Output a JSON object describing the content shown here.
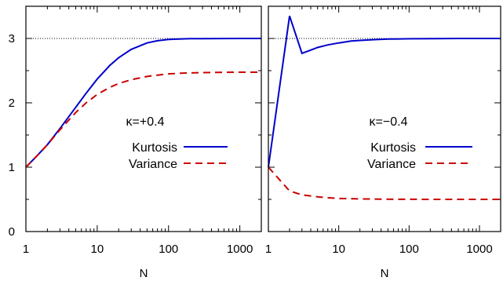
{
  "chart_data": [
    {
      "type": "line",
      "annotation": "κ=+0.4",
      "xlabel": "N",
      "ylabel": "",
      "xscale": "log",
      "xlim": [
        1,
        2000
      ],
      "ylim": [
        0,
        3.5
      ],
      "xticks": [
        "1",
        "10",
        "100",
        "1000"
      ],
      "yticks": [
        "0",
        "1",
        "2",
        "3"
      ],
      "reference_line": {
        "y": 3,
        "style": "dotted",
        "color": "#000000"
      },
      "legend": "center-right",
      "series": [
        {
          "name": "Kurtosis",
          "color": "#0000cc",
          "dash": "solid",
          "x": [
            1,
            1.5,
            2,
            3,
            5,
            7,
            10,
            15,
            20,
            30,
            50,
            70,
            100,
            150,
            200,
            300,
            500,
            1000,
            2000
          ],
          "y": [
            1.0,
            1.2,
            1.35,
            1.6,
            1.93,
            2.15,
            2.37,
            2.58,
            2.7,
            2.83,
            2.93,
            2.965,
            2.985,
            2.993,
            2.996,
            2.998,
            2.999,
            3.0,
            3.0
          ]
        },
        {
          "name": "Variance",
          "color": "#cc0000",
          "dash": "dashed",
          "x": [
            1,
            1.5,
            2,
            3,
            5,
            7,
            10,
            15,
            20,
            30,
            50,
            70,
            100,
            150,
            200,
            300,
            500,
            1000,
            2000
          ],
          "y": [
            1.0,
            1.2,
            1.35,
            1.58,
            1.85,
            2.0,
            2.13,
            2.24,
            2.3,
            2.36,
            2.41,
            2.43,
            2.45,
            2.46,
            2.465,
            2.47,
            2.473,
            2.475,
            2.476
          ]
        }
      ]
    },
    {
      "type": "line",
      "annotation": "κ=−0.4",
      "xlabel": "N",
      "ylabel": "",
      "xscale": "log",
      "xlim": [
        1,
        2000
      ],
      "ylim": [
        0,
        3.5
      ],
      "xticks": [
        "1",
        "10",
        "100",
        "1000"
      ],
      "yticks": [],
      "reference_line": {
        "y": 3,
        "style": "dotted",
        "color": "#000000"
      },
      "legend": "center-right",
      "series": [
        {
          "name": "Kurtosis",
          "color": "#0000cc",
          "dash": "solid",
          "x": [
            1,
            2,
            3,
            4,
            5,
            7,
            10,
            15,
            20,
            30,
            50,
            100,
            200,
            500,
            1000,
            2000
          ],
          "y": [
            1.0,
            3.35,
            2.77,
            2.82,
            2.86,
            2.9,
            2.93,
            2.96,
            2.97,
            2.98,
            2.99,
            2.995,
            2.998,
            3.0,
            3.0,
            3.0
          ]
        },
        {
          "name": "Variance",
          "color": "#cc0000",
          "dash": "dashed",
          "x": [
            1,
            2,
            3,
            5,
            7,
            10,
            20,
            50,
            100,
            200,
            500,
            1000,
            2000
          ],
          "y": [
            1.0,
            0.63,
            0.57,
            0.54,
            0.525,
            0.515,
            0.507,
            0.502,
            0.501,
            0.5,
            0.5,
            0.5,
            0.5
          ]
        }
      ]
    }
  ]
}
